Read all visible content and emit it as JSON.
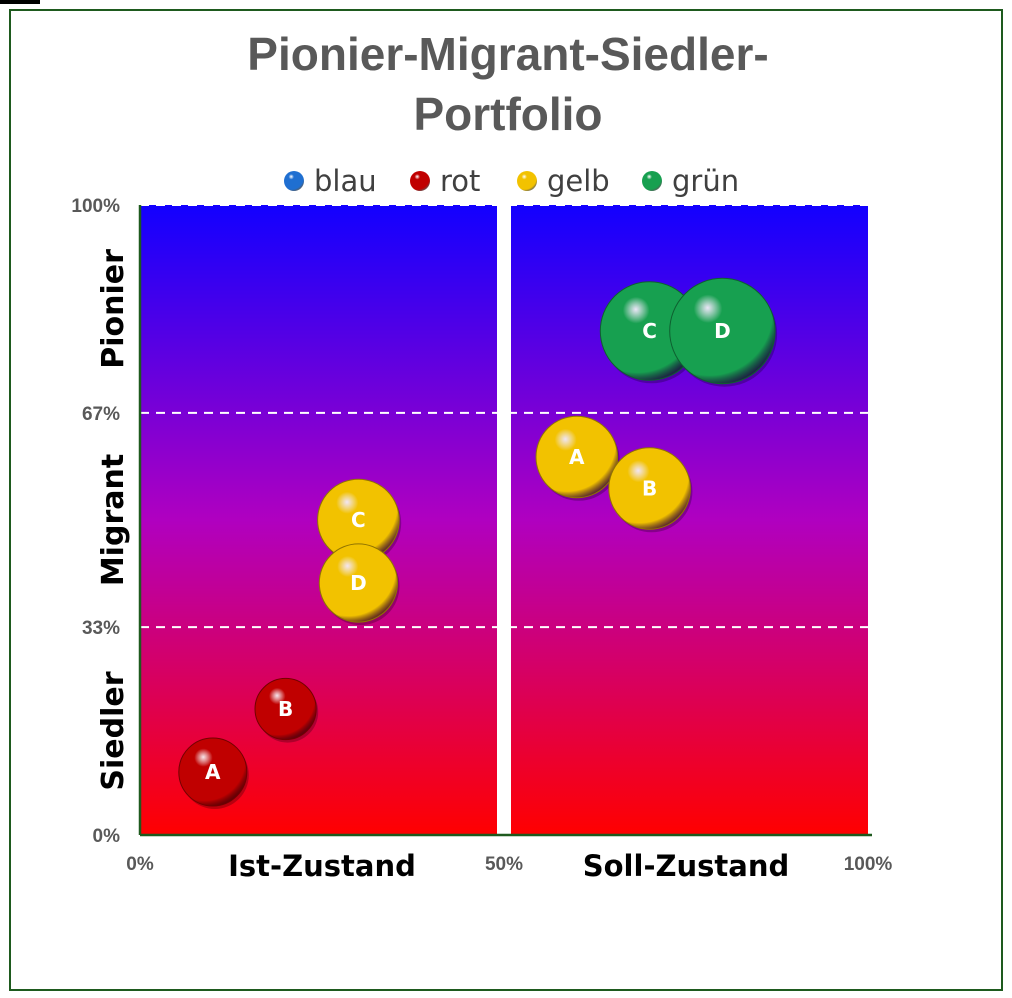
{
  "chart_data": {
    "type": "scatter",
    "title_lines": [
      "Pionier-Migrant-Siedler-",
      "Portfolio"
    ],
    "legend": [
      {
        "name": "blau",
        "color": "#1f6fd1"
      },
      {
        "name": "rot",
        "color": "#c00000"
      },
      {
        "name": "gelb",
        "color": "#f2c200"
      },
      {
        "name": "grün",
        "color": "#17a050"
      }
    ],
    "x_ticks": [
      {
        "value": 0,
        "label": "0%"
      },
      {
        "value": 50,
        "label": "50%"
      },
      {
        "value": 100,
        "label": "100%"
      }
    ],
    "y_ticks": [
      {
        "value": 0,
        "label": "0%"
      },
      {
        "value": 33,
        "label": "33%"
      },
      {
        "value": 67,
        "label": "67%"
      },
      {
        "value": 100,
        "label": "100%"
      }
    ],
    "xlim": [
      0,
      100
    ],
    "ylim": [
      0,
      100
    ],
    "zones": [
      {
        "label": "Siedler",
        "from": 0,
        "to": 33
      },
      {
        "label": "Migrant",
        "from": 33,
        "to": 67
      },
      {
        "label": "Pionier",
        "from": 67,
        "to": 100
      }
    ],
    "halves": [
      {
        "label": "Ist-Zustand",
        "from": 0,
        "to": 50
      },
      {
        "label": "Soll-Zustand",
        "from": 50,
        "to": 100
      }
    ],
    "background_gradient": {
      "top": "#1200ff",
      "bottom": "#ff0000"
    },
    "series": [
      {
        "name": "rot",
        "color": "#c00000",
        "points": [
          {
            "label": "A",
            "x": 10,
            "y": 10,
            "size": 1.0
          },
          {
            "label": "B",
            "x": 20,
            "y": 20,
            "size": 0.9
          }
        ]
      },
      {
        "name": "gelb",
        "color": "#f2c200",
        "points": [
          {
            "label": "C",
            "x": 30,
            "y": 50,
            "size": 1.2
          },
          {
            "label": "D",
            "x": 30,
            "y": 40,
            "size": 1.15
          },
          {
            "label": "A",
            "x": 60,
            "y": 60,
            "size": 1.2
          },
          {
            "label": "B",
            "x": 70,
            "y": 55,
            "size": 1.2
          }
        ]
      },
      {
        "name": "grün",
        "color": "#17a050",
        "points": [
          {
            "label": "C",
            "x": 70,
            "y": 80,
            "size": 1.45
          },
          {
            "label": "D",
            "x": 80,
            "y": 80,
            "size": 1.55
          }
        ]
      }
    ]
  }
}
